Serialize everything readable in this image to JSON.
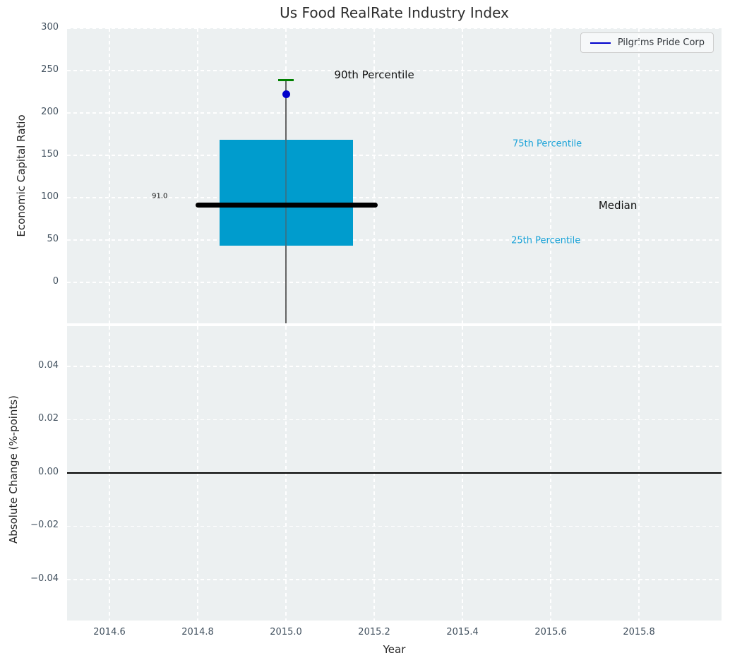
{
  "title": "Us Food RealRate Industry Index",
  "legend": {
    "label": "Pilgrims Pride Corp",
    "line_color": "#0000cc"
  },
  "colors": {
    "axes_bg": "#ecf0f1",
    "grid": "#ffffff",
    "tick_label": "#41505e",
    "box_fill": "#009ccd",
    "percentile_label": "#1ba3d8",
    "median_line": "#000000",
    "whisker": "#5a5a5a",
    "cap": "#008000",
    "point": "#0000cc",
    "zero_line": "#000000"
  },
  "x_axis": {
    "xlim": [
      2014.504,
      2015.987
    ],
    "label": "Year",
    "ticks": [
      {
        "label": "2014.6",
        "value": 2014.6
      },
      {
        "label": "2014.8",
        "value": 2014.8
      },
      {
        "label": "2015.0",
        "value": 2015.0
      },
      {
        "label": "2015.2",
        "value": 2015.2
      },
      {
        "label": "2015.4",
        "value": 2015.4
      },
      {
        "label": "2015.6",
        "value": 2015.6
      },
      {
        "label": "2015.8",
        "value": 2015.8
      }
    ]
  },
  "chart_data": [
    {
      "type": "boxplot",
      "title": "Us Food RealRate Industry Index",
      "ylabel": "Economic Capital Ratio",
      "ylim": [
        -48.3,
        300
      ],
      "grid": true,
      "yticks": [
        {
          "label": "0",
          "value": 0
        },
        {
          "label": "50",
          "value": 50
        },
        {
          "label": "100",
          "value": 100
        },
        {
          "label": "150",
          "value": 150
        },
        {
          "label": "200",
          "value": 200
        },
        {
          "label": "250",
          "value": 250
        },
        {
          "label": "300",
          "value": 300
        }
      ],
      "series_label": "Pilgrims Pride Corp",
      "box": {
        "x_center": 2015.0,
        "x_left": 2014.85,
        "x_right": 2015.152,
        "q1": 43.3,
        "q3": 168.3,
        "median": 91.0,
        "median_x_left": 2014.795,
        "median_x_right": 2015.208,
        "p90_cap": 238.8,
        "cap_half_width": 0.018,
        "company_point": 221.7
      },
      "annotations": [
        {
          "text": "90th Percentile",
          "x": 2015.2,
          "y": 245,
          "size": 15,
          "color": "#111111"
        },
        {
          "text": "75th Percentile",
          "x": 2015.592,
          "y": 163,
          "size": 13,
          "color": "#1ba3d8"
        },
        {
          "text": "25th Percentile",
          "x": 2015.589,
          "y": 49,
          "size": 13,
          "color": "#1ba3d8"
        },
        {
          "text": "Median",
          "x": 2015.752,
          "y": 91,
          "size": 15,
          "color": "#111111"
        },
        {
          "text": "91.0",
          "x": 2014.714,
          "y": 102,
          "size": 10,
          "color": "#111111"
        }
      ]
    },
    {
      "type": "line",
      "ylabel": "Absolute Change (%-points)",
      "xlabel": "Year",
      "ylim": [
        -0.0554,
        0.0551
      ],
      "grid": true,
      "yticks": [
        {
          "label": "0.04",
          "value": 0.04
        },
        {
          "label": "0.02",
          "value": 0.02
        },
        {
          "label": "0.00",
          "value": 0.0
        },
        {
          "label": "−0.02",
          "value": -0.02
        },
        {
          "label": "−0.04",
          "value": -0.04
        }
      ],
      "zero_line_y": 0.0
    }
  ]
}
